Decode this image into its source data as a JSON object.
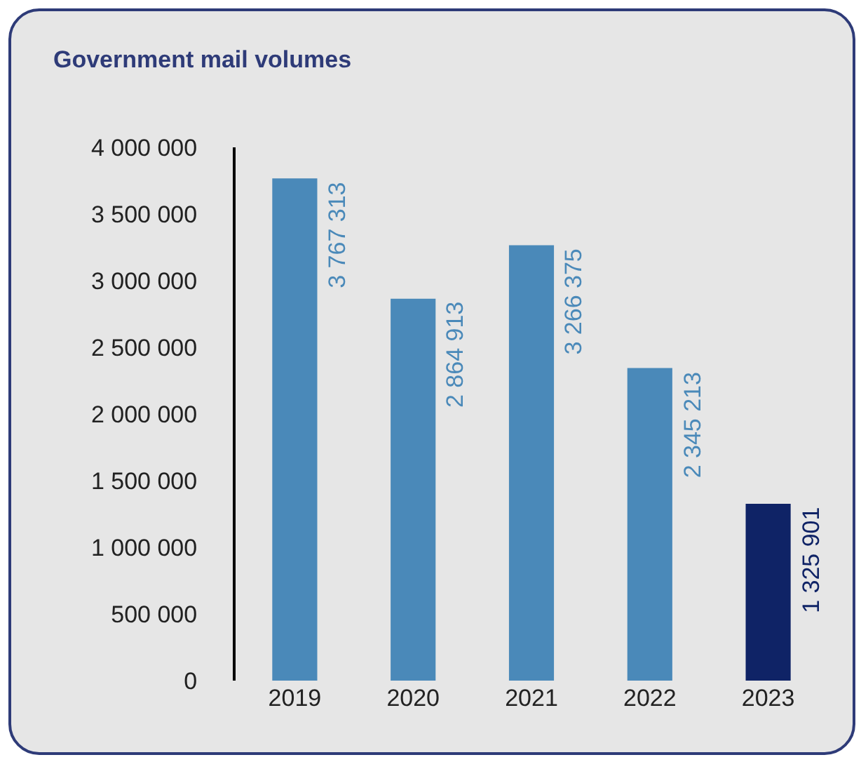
{
  "chart_data": {
    "type": "bar",
    "title": "Government mail volumes",
    "categories": [
      "2019",
      "2020",
      "2021",
      "2022",
      "2023"
    ],
    "values": [
      3767313,
      2864913,
      3266375,
      2345213,
      1325901
    ],
    "colors": [
      "#4a89b9",
      "#4a89b9",
      "#4a89b9",
      "#4a89b9",
      "#0f2366"
    ],
    "ylim": [
      0,
      4000000
    ],
    "yticks": [
      {
        "value": 0,
        "label": "0"
      },
      {
        "value": 500000,
        "label": "500 000"
      },
      {
        "value": 1000000,
        "label": "1 000 000"
      },
      {
        "value": 1500000,
        "label": "1 500 000"
      },
      {
        "value": 2000000,
        "label": "2 000 000"
      },
      {
        "value": 2500000,
        "label": "2 500 000"
      },
      {
        "value": 3000000,
        "label": "3 000 000"
      },
      {
        "value": 3500000,
        "label": "3 500 000"
      },
      {
        "value": 4000000,
        "label": "4 000 000"
      }
    ],
    "data_labels": true
  }
}
